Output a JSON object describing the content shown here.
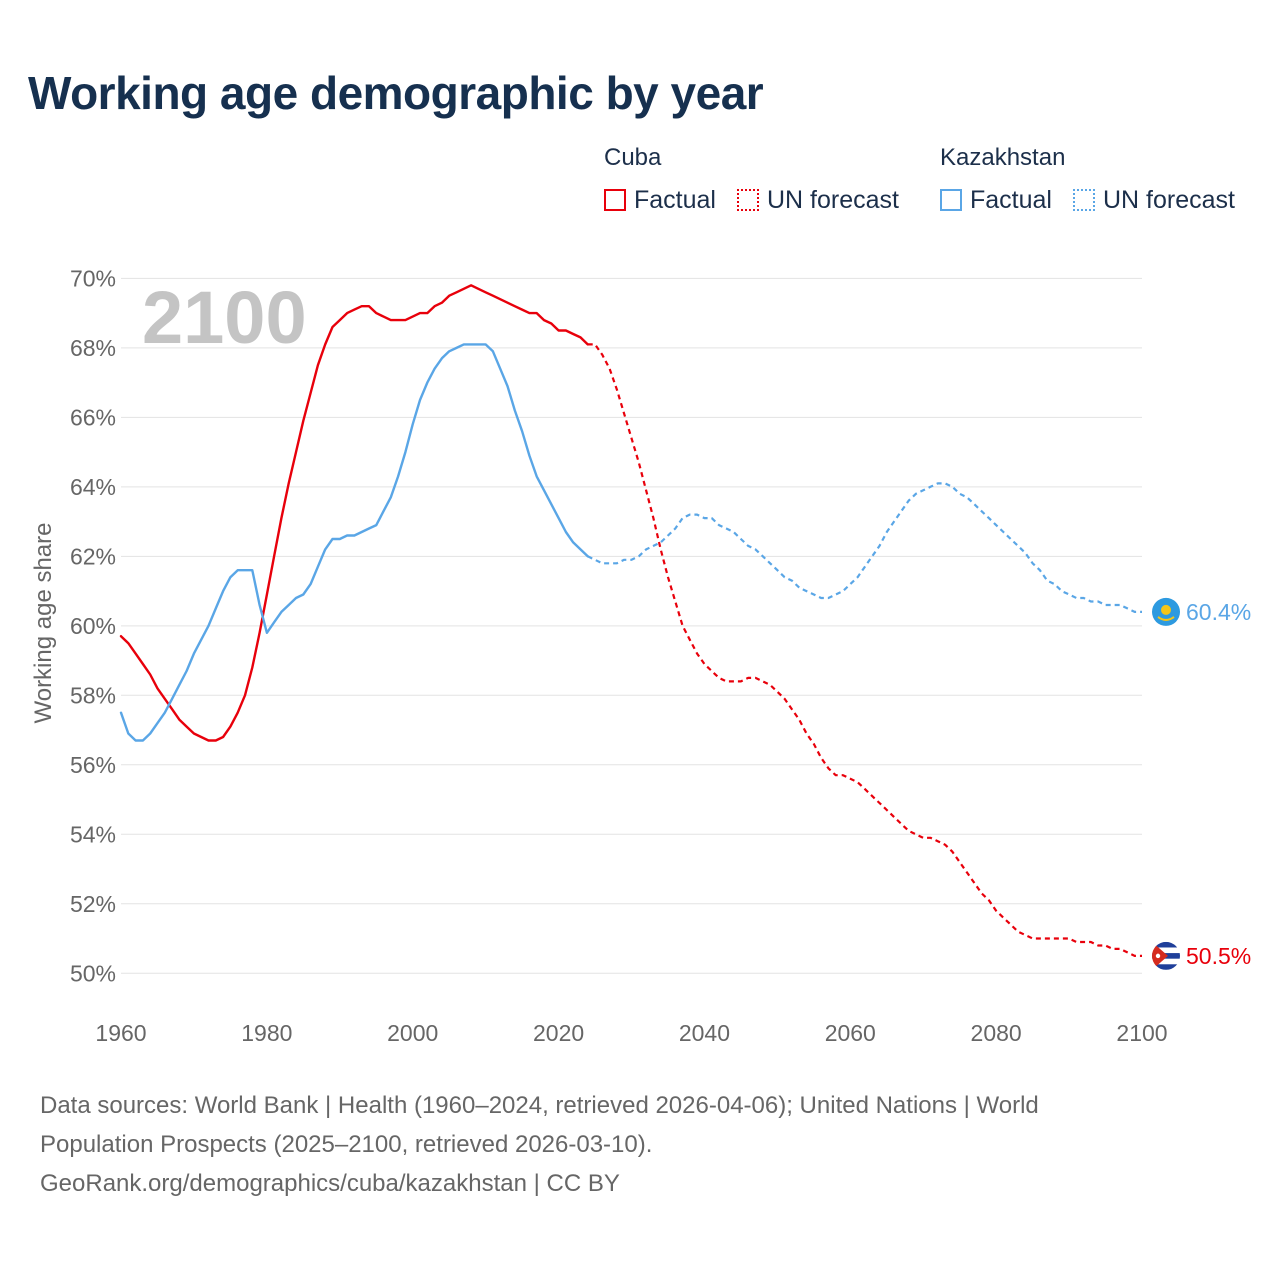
{
  "title": "Working age demographic by year",
  "legend": {
    "groups": [
      {
        "name": "Cuba",
        "color": "#e8000b",
        "factual_label": "Factual",
        "forecast_label": "UN forecast"
      },
      {
        "name": "Kazakhstan",
        "color": "#5aa6e6",
        "factual_label": "Factual",
        "forecast_label": "UN forecast"
      }
    ]
  },
  "year_overlay": "2100",
  "footer": {
    "line1": "Data sources: World Bank | Health (1960–2024, retrieved 2026-04-06); United Nations | World",
    "line2": "Population Prospects (2025–2100, retrieved 2026-03-10).",
    "line3": "GeoRank.org/demographics/cuba/kazakhstan | CC BY"
  },
  "chart_data": {
    "type": "line",
    "title": "Working age demographic by year",
    "xlabel": "",
    "ylabel": "Working age share",
    "xlim": [
      1960,
      2100
    ],
    "ylim": [
      49,
      70.5
    ],
    "x_ticks": [
      1960,
      1980,
      2000,
      2020,
      2040,
      2060,
      2080,
      2100
    ],
    "y_ticks": [
      50,
      52,
      54,
      56,
      58,
      60,
      62,
      64,
      66,
      68,
      70
    ],
    "y_tick_suffix": "%",
    "grid": true,
    "factual_end_year": 2024,
    "series": [
      {
        "name": "Cuba",
        "color": "#e8000b",
        "end_label": "50.5%",
        "points": [
          [
            1960,
            59.7
          ],
          [
            1961,
            59.5
          ],
          [
            1962,
            59.2
          ],
          [
            1963,
            58.9
          ],
          [
            1964,
            58.6
          ],
          [
            1965,
            58.2
          ],
          [
            1966,
            57.9
          ],
          [
            1967,
            57.6
          ],
          [
            1968,
            57.3
          ],
          [
            1969,
            57.1
          ],
          [
            1970,
            56.9
          ],
          [
            1971,
            56.8
          ],
          [
            1972,
            56.7
          ],
          [
            1973,
            56.7
          ],
          [
            1974,
            56.8
          ],
          [
            1975,
            57.1
          ],
          [
            1976,
            57.5
          ],
          [
            1977,
            58.0
          ],
          [
            1978,
            58.8
          ],
          [
            1979,
            59.8
          ],
          [
            1980,
            60.9
          ],
          [
            1981,
            62.0
          ],
          [
            1982,
            63.1
          ],
          [
            1983,
            64.1
          ],
          [
            1984,
            65.0
          ],
          [
            1985,
            65.9
          ],
          [
            1986,
            66.7
          ],
          [
            1987,
            67.5
          ],
          [
            1988,
            68.1
          ],
          [
            1989,
            68.6
          ],
          [
            1990,
            68.8
          ],
          [
            1991,
            69.0
          ],
          [
            1992,
            69.1
          ],
          [
            1993,
            69.2
          ],
          [
            1994,
            69.2
          ],
          [
            1995,
            69.0
          ],
          [
            1996,
            68.9
          ],
          [
            1997,
            68.8
          ],
          [
            1998,
            68.8
          ],
          [
            1999,
            68.8
          ],
          [
            2000,
            68.9
          ],
          [
            2001,
            69.0
          ],
          [
            2002,
            69.0
          ],
          [
            2003,
            69.2
          ],
          [
            2004,
            69.3
          ],
          [
            2005,
            69.5
          ],
          [
            2006,
            69.6
          ],
          [
            2007,
            69.7
          ],
          [
            2008,
            69.8
          ],
          [
            2009,
            69.7
          ],
          [
            2010,
            69.6
          ],
          [
            2011,
            69.5
          ],
          [
            2012,
            69.4
          ],
          [
            2013,
            69.3
          ],
          [
            2014,
            69.2
          ],
          [
            2015,
            69.1
          ],
          [
            2016,
            69.0
          ],
          [
            2017,
            69.0
          ],
          [
            2018,
            68.8
          ],
          [
            2019,
            68.7
          ],
          [
            2020,
            68.5
          ],
          [
            2021,
            68.5
          ],
          [
            2022,
            68.4
          ],
          [
            2023,
            68.3
          ],
          [
            2024,
            68.1
          ],
          [
            2025,
            68.1
          ],
          [
            2026,
            67.8
          ],
          [
            2027,
            67.4
          ],
          [
            2028,
            66.8
          ],
          [
            2029,
            66.1
          ],
          [
            2030,
            65.4
          ],
          [
            2031,
            64.7
          ],
          [
            2032,
            63.9
          ],
          [
            2033,
            63.1
          ],
          [
            2034,
            62.2
          ],
          [
            2035,
            61.4
          ],
          [
            2036,
            60.7
          ],
          [
            2037,
            60.0
          ],
          [
            2038,
            59.6
          ],
          [
            2039,
            59.2
          ],
          [
            2040,
            58.9
          ],
          [
            2041,
            58.7
          ],
          [
            2042,
            58.5
          ],
          [
            2043,
            58.4
          ],
          [
            2044,
            58.4
          ],
          [
            2045,
            58.4
          ],
          [
            2046,
            58.5
          ],
          [
            2047,
            58.5
          ],
          [
            2048,
            58.4
          ],
          [
            2049,
            58.3
          ],
          [
            2050,
            58.1
          ],
          [
            2051,
            57.9
          ],
          [
            2052,
            57.6
          ],
          [
            2053,
            57.3
          ],
          [
            2054,
            56.9
          ],
          [
            2055,
            56.6
          ],
          [
            2056,
            56.2
          ],
          [
            2057,
            55.9
          ],
          [
            2058,
            55.7
          ],
          [
            2059,
            55.7
          ],
          [
            2060,
            55.6
          ],
          [
            2061,
            55.5
          ],
          [
            2062,
            55.3
          ],
          [
            2063,
            55.1
          ],
          [
            2064,
            54.9
          ],
          [
            2065,
            54.7
          ],
          [
            2066,
            54.5
          ],
          [
            2067,
            54.3
          ],
          [
            2068,
            54.1
          ],
          [
            2069,
            54.0
          ],
          [
            2070,
            53.9
          ],
          [
            2071,
            53.9
          ],
          [
            2072,
            53.8
          ],
          [
            2073,
            53.7
          ],
          [
            2074,
            53.5
          ],
          [
            2075,
            53.2
          ],
          [
            2076,
            52.9
          ],
          [
            2077,
            52.6
          ],
          [
            2078,
            52.3
          ],
          [
            2079,
            52.1
          ],
          [
            2080,
            51.8
          ],
          [
            2081,
            51.6
          ],
          [
            2082,
            51.4
          ],
          [
            2083,
            51.2
          ],
          [
            2084,
            51.1
          ],
          [
            2085,
            51.0
          ],
          [
            2086,
            51.0
          ],
          [
            2087,
            51.0
          ],
          [
            2088,
            51.0
          ],
          [
            2089,
            51.0
          ],
          [
            2090,
            51.0
          ],
          [
            2091,
            50.9
          ],
          [
            2092,
            50.9
          ],
          [
            2093,
            50.9
          ],
          [
            2094,
            50.8
          ],
          [
            2095,
            50.8
          ],
          [
            2096,
            50.7
          ],
          [
            2097,
            50.7
          ],
          [
            2098,
            50.6
          ],
          [
            2099,
            50.5
          ],
          [
            2100,
            50.5
          ]
        ]
      },
      {
        "name": "Kazakhstan",
        "color": "#5aa6e6",
        "end_label": "60.4%",
        "points": [
          [
            1960,
            57.5
          ],
          [
            1961,
            56.9
          ],
          [
            1962,
            56.7
          ],
          [
            1963,
            56.7
          ],
          [
            1964,
            56.9
          ],
          [
            1965,
            57.2
          ],
          [
            1966,
            57.5
          ],
          [
            1967,
            57.9
          ],
          [
            1968,
            58.3
          ],
          [
            1969,
            58.7
          ],
          [
            1970,
            59.2
          ],
          [
            1971,
            59.6
          ],
          [
            1972,
            60.0
          ],
          [
            1973,
            60.5
          ],
          [
            1974,
            61.0
          ],
          [
            1975,
            61.4
          ],
          [
            1976,
            61.6
          ],
          [
            1977,
            61.6
          ],
          [
            1978,
            61.6
          ],
          [
            1979,
            60.6
          ],
          [
            1980,
            59.8
          ],
          [
            1981,
            60.1
          ],
          [
            1982,
            60.4
          ],
          [
            1983,
            60.6
          ],
          [
            1984,
            60.8
          ],
          [
            1985,
            60.9
          ],
          [
            1986,
            61.2
          ],
          [
            1987,
            61.7
          ],
          [
            1988,
            62.2
          ],
          [
            1989,
            62.5
          ],
          [
            1990,
            62.5
          ],
          [
            1991,
            62.6
          ],
          [
            1992,
            62.6
          ],
          [
            1993,
            62.7
          ],
          [
            1994,
            62.8
          ],
          [
            1995,
            62.9
          ],
          [
            1996,
            63.3
          ],
          [
            1997,
            63.7
          ],
          [
            1998,
            64.3
          ],
          [
            1999,
            65.0
          ],
          [
            2000,
            65.8
          ],
          [
            2001,
            66.5
          ],
          [
            2002,
            67.0
          ],
          [
            2003,
            67.4
          ],
          [
            2004,
            67.7
          ],
          [
            2005,
            67.9
          ],
          [
            2006,
            68.0
          ],
          [
            2007,
            68.1
          ],
          [
            2008,
            68.1
          ],
          [
            2009,
            68.1
          ],
          [
            2010,
            68.1
          ],
          [
            2011,
            67.9
          ],
          [
            2012,
            67.4
          ],
          [
            2013,
            66.9
          ],
          [
            2014,
            66.2
          ],
          [
            2015,
            65.6
          ],
          [
            2016,
            64.9
          ],
          [
            2017,
            64.3
          ],
          [
            2018,
            63.9
          ],
          [
            2019,
            63.5
          ],
          [
            2020,
            63.1
          ],
          [
            2021,
            62.7
          ],
          [
            2022,
            62.4
          ],
          [
            2023,
            62.2
          ],
          [
            2024,
            62.0
          ],
          [
            2025,
            61.9
          ],
          [
            2026,
            61.8
          ],
          [
            2027,
            61.8
          ],
          [
            2028,
            61.8
          ],
          [
            2029,
            61.9
          ],
          [
            2030,
            61.9
          ],
          [
            2031,
            62.0
          ],
          [
            2032,
            62.2
          ],
          [
            2033,
            62.3
          ],
          [
            2034,
            62.4
          ],
          [
            2035,
            62.6
          ],
          [
            2036,
            62.8
          ],
          [
            2037,
            63.1
          ],
          [
            2038,
            63.2
          ],
          [
            2039,
            63.2
          ],
          [
            2040,
            63.1
          ],
          [
            2041,
            63.1
          ],
          [
            2042,
            62.9
          ],
          [
            2043,
            62.8
          ],
          [
            2044,
            62.7
          ],
          [
            2045,
            62.5
          ],
          [
            2046,
            62.3
          ],
          [
            2047,
            62.2
          ],
          [
            2048,
            62.0
          ],
          [
            2049,
            61.8
          ],
          [
            2050,
            61.6
          ],
          [
            2051,
            61.4
          ],
          [
            2052,
            61.3
          ],
          [
            2053,
            61.1
          ],
          [
            2054,
            61.0
          ],
          [
            2055,
            60.9
          ],
          [
            2056,
            60.8
          ],
          [
            2057,
            60.8
          ],
          [
            2058,
            60.9
          ],
          [
            2059,
            61.0
          ],
          [
            2060,
            61.2
          ],
          [
            2061,
            61.4
          ],
          [
            2062,
            61.7
          ],
          [
            2063,
            62.0
          ],
          [
            2064,
            62.3
          ],
          [
            2065,
            62.7
          ],
          [
            2066,
            63.0
          ],
          [
            2067,
            63.3
          ],
          [
            2068,
            63.6
          ],
          [
            2069,
            63.8
          ],
          [
            2070,
            63.9
          ],
          [
            2071,
            64.0
          ],
          [
            2072,
            64.1
          ],
          [
            2073,
            64.1
          ],
          [
            2074,
            64.0
          ],
          [
            2075,
            63.8
          ],
          [
            2076,
            63.7
          ],
          [
            2077,
            63.5
          ],
          [
            2078,
            63.3
          ],
          [
            2079,
            63.1
          ],
          [
            2080,
            62.9
          ],
          [
            2081,
            62.7
          ],
          [
            2082,
            62.5
          ],
          [
            2083,
            62.3
          ],
          [
            2084,
            62.1
          ],
          [
            2085,
            61.8
          ],
          [
            2086,
            61.6
          ],
          [
            2087,
            61.3
          ],
          [
            2088,
            61.2
          ],
          [
            2089,
            61.0
          ],
          [
            2090,
            60.9
          ],
          [
            2091,
            60.8
          ],
          [
            2092,
            60.8
          ],
          [
            2093,
            60.7
          ],
          [
            2094,
            60.7
          ],
          [
            2095,
            60.6
          ],
          [
            2096,
            60.6
          ],
          [
            2097,
            60.6
          ],
          [
            2098,
            60.5
          ],
          [
            2099,
            60.4
          ],
          [
            2100,
            60.4
          ]
        ]
      }
    ]
  }
}
